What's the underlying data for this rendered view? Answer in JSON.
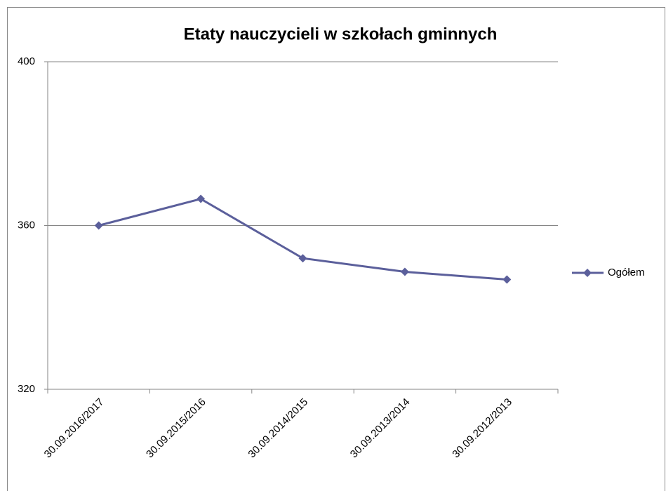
{
  "chart_data": {
    "type": "line",
    "title": "Etaty nauczycieli w szkołach gminnych",
    "categories": [
      "30.09.2016/2017",
      "30.09.2015/2016",
      "30.09.2014/2015",
      "30.09.2013/2014",
      "30.09.2012/2013"
    ],
    "series": [
      {
        "name": "Ogółem",
        "color": "#5b5f9b",
        "values": [
          360,
          366.5,
          352,
          348.7,
          346.8
        ]
      }
    ],
    "ylim": [
      320,
      400
    ],
    "yticks": [
      320,
      360,
      400
    ],
    "grid": true,
    "legend": "right"
  }
}
